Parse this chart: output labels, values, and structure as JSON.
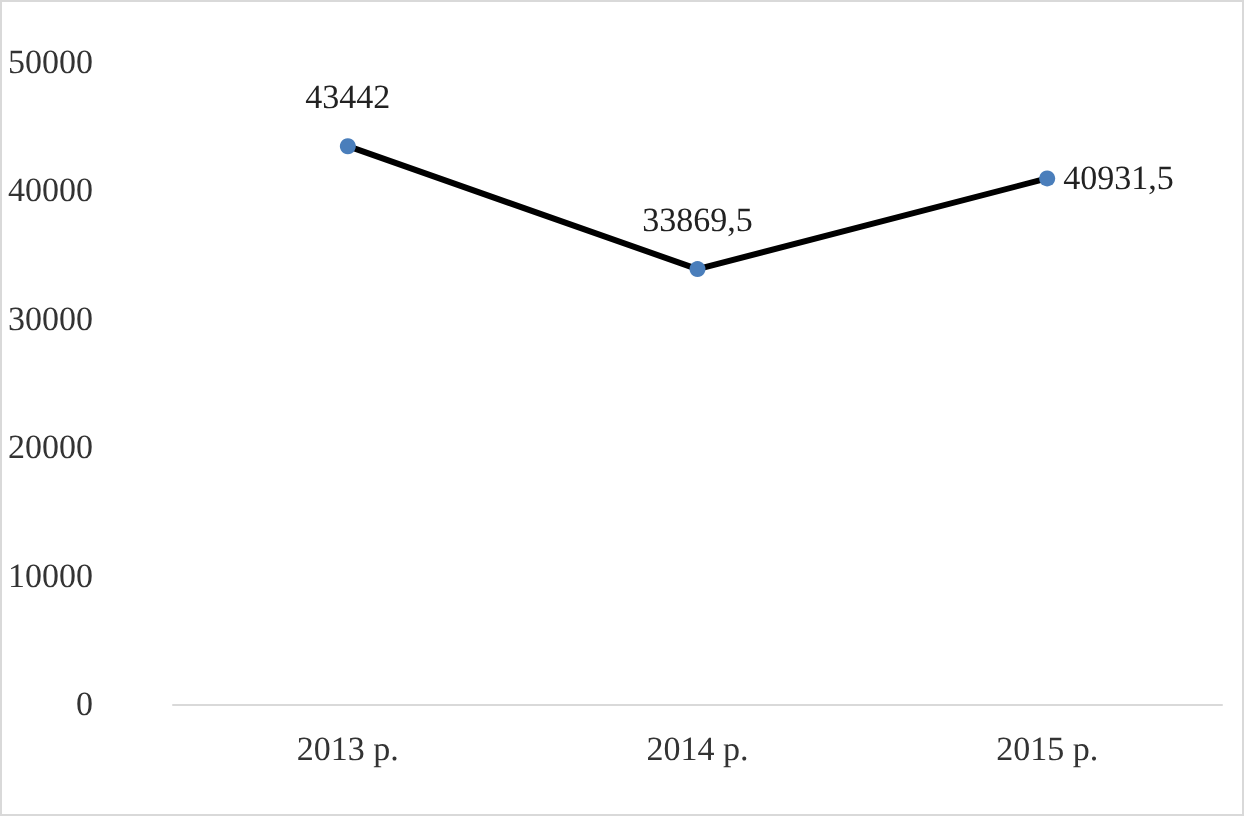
{
  "chart_data": {
    "type": "line",
    "categories": [
      "2013 р.",
      "2014 р.",
      "2015 р."
    ],
    "series": [
      {
        "color": "#000000",
        "values": [
          43442,
          33869.5,
          40931.5
        ],
        "value_labels": [
          "43442",
          "33869,5",
          "40931,5"
        ]
      }
    ],
    "ylim": [
      0,
      50000
    ],
    "yticks": [
      0,
      10000,
      20000,
      30000,
      40000,
      50000
    ],
    "grid": false,
    "marker": "circle",
    "line_style": "solid"
  }
}
